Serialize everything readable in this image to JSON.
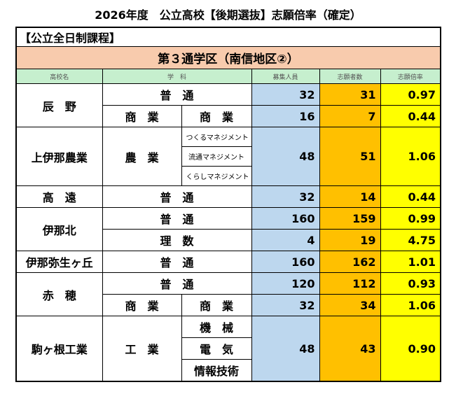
{
  "title": "2026年度　公立高校【後期選抜】志願倍率（確定）",
  "category": "【公立全日制課程】",
  "district": "第３通学区（南信地区②）",
  "columns": [
    "高校名",
    "学　科",
    "募集人員",
    "志願者数",
    "志願倍率"
  ],
  "schools": [
    {
      "name": "辰　野",
      "departments": [
        {
          "name": "普　通",
          "capacity": "32",
          "applicants": "31",
          "ratio": "0.97"
        },
        {
          "name": "商　業",
          "courses": [
            "商　業"
          ],
          "capacity": "16",
          "applicants": "7",
          "ratio": "0.44"
        }
      ]
    },
    {
      "name": "上伊那農業",
      "departments": [
        {
          "name": "農　業",
          "courses": [
            "つくるマネジメント",
            "流通マネジメント",
            "くらしマネジメント"
          ],
          "capacity": "48",
          "applicants": "51",
          "ratio": "1.06"
        }
      ]
    },
    {
      "name": "高　遠",
      "departments": [
        {
          "name": "普　通",
          "capacity": "32",
          "applicants": "14",
          "ratio": "0.44"
        }
      ]
    },
    {
      "name": "伊那北",
      "departments": [
        {
          "name": "普　通",
          "capacity": "160",
          "applicants": "159",
          "ratio": "0.99"
        },
        {
          "name": "理　数",
          "capacity": "4",
          "applicants": "19",
          "ratio": "4.75"
        }
      ]
    },
    {
      "name": "伊那弥生ヶ丘",
      "departments": [
        {
          "name": "普　通",
          "capacity": "160",
          "applicants": "162",
          "ratio": "1.01"
        }
      ]
    },
    {
      "name": "赤　穂",
      "departments": [
        {
          "name": "普　通",
          "capacity": "120",
          "applicants": "112",
          "ratio": "0.93"
        },
        {
          "name": "商　業",
          "courses": [
            "商　業"
          ],
          "capacity": "32",
          "applicants": "34",
          "ratio": "1.06"
        }
      ]
    },
    {
      "name": "駒ヶ根工業",
      "departments": [
        {
          "name": "工　業",
          "courses": [
            "機　械",
            "電　気",
            "情報技術"
          ],
          "capacity": "48",
          "applicants": "43",
          "ratio": "0.90"
        }
      ]
    }
  ]
}
